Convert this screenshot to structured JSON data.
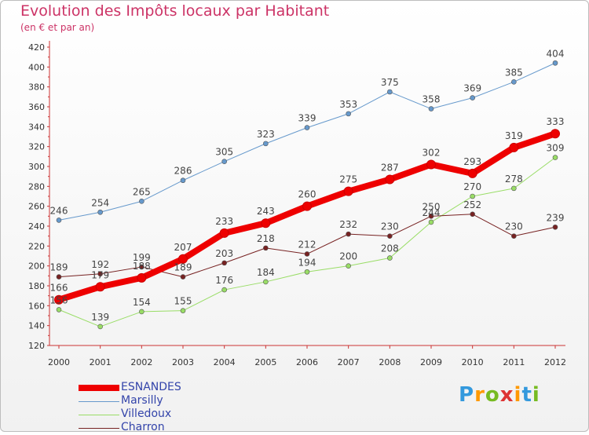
{
  "header": {
    "title": "Evolution des Impôts locaux par Habitant",
    "subtitle": "(en € et par an)"
  },
  "logo_text": "Proxiti",
  "chart_data": {
    "type": "line",
    "title": "Evolution des Impôts locaux par Habitant",
    "subtitle": "(en € et par an)",
    "xlabel": "",
    "ylabel": "",
    "x": [
      "2000",
      "2001",
      "2002",
      "2003",
      "2004",
      "2005",
      "2006",
      "2007",
      "2008",
      "2009",
      "2010",
      "2011",
      "2012"
    ],
    "ylim": [
      120,
      420
    ],
    "ytick_step": 20,
    "grid": false,
    "legend_position": "bottom-left",
    "series": [
      {
        "name": "ESNANDES",
        "color": "#ee0000",
        "values": [
          166,
          179,
          188,
          207,
          233,
          243,
          260,
          275,
          287,
          302,
          293,
          319,
          333
        ]
      },
      {
        "name": "Marsilly",
        "color": "#6699cc",
        "values": [
          246,
          254,
          265,
          286,
          305,
          323,
          339,
          353,
          375,
          358,
          369,
          385,
          404
        ]
      },
      {
        "name": "Villedoux",
        "color": "#99dd66",
        "values": [
          156,
          139,
          154,
          155,
          176,
          184,
          194,
          200,
          208,
          244,
          270,
          278,
          309
        ]
      },
      {
        "name": "Charron",
        "color": "#772222",
        "values": [
          189,
          192,
          199,
          189,
          203,
          218,
          212,
          232,
          230,
          250,
          252,
          230,
          239
        ]
      }
    ]
  }
}
